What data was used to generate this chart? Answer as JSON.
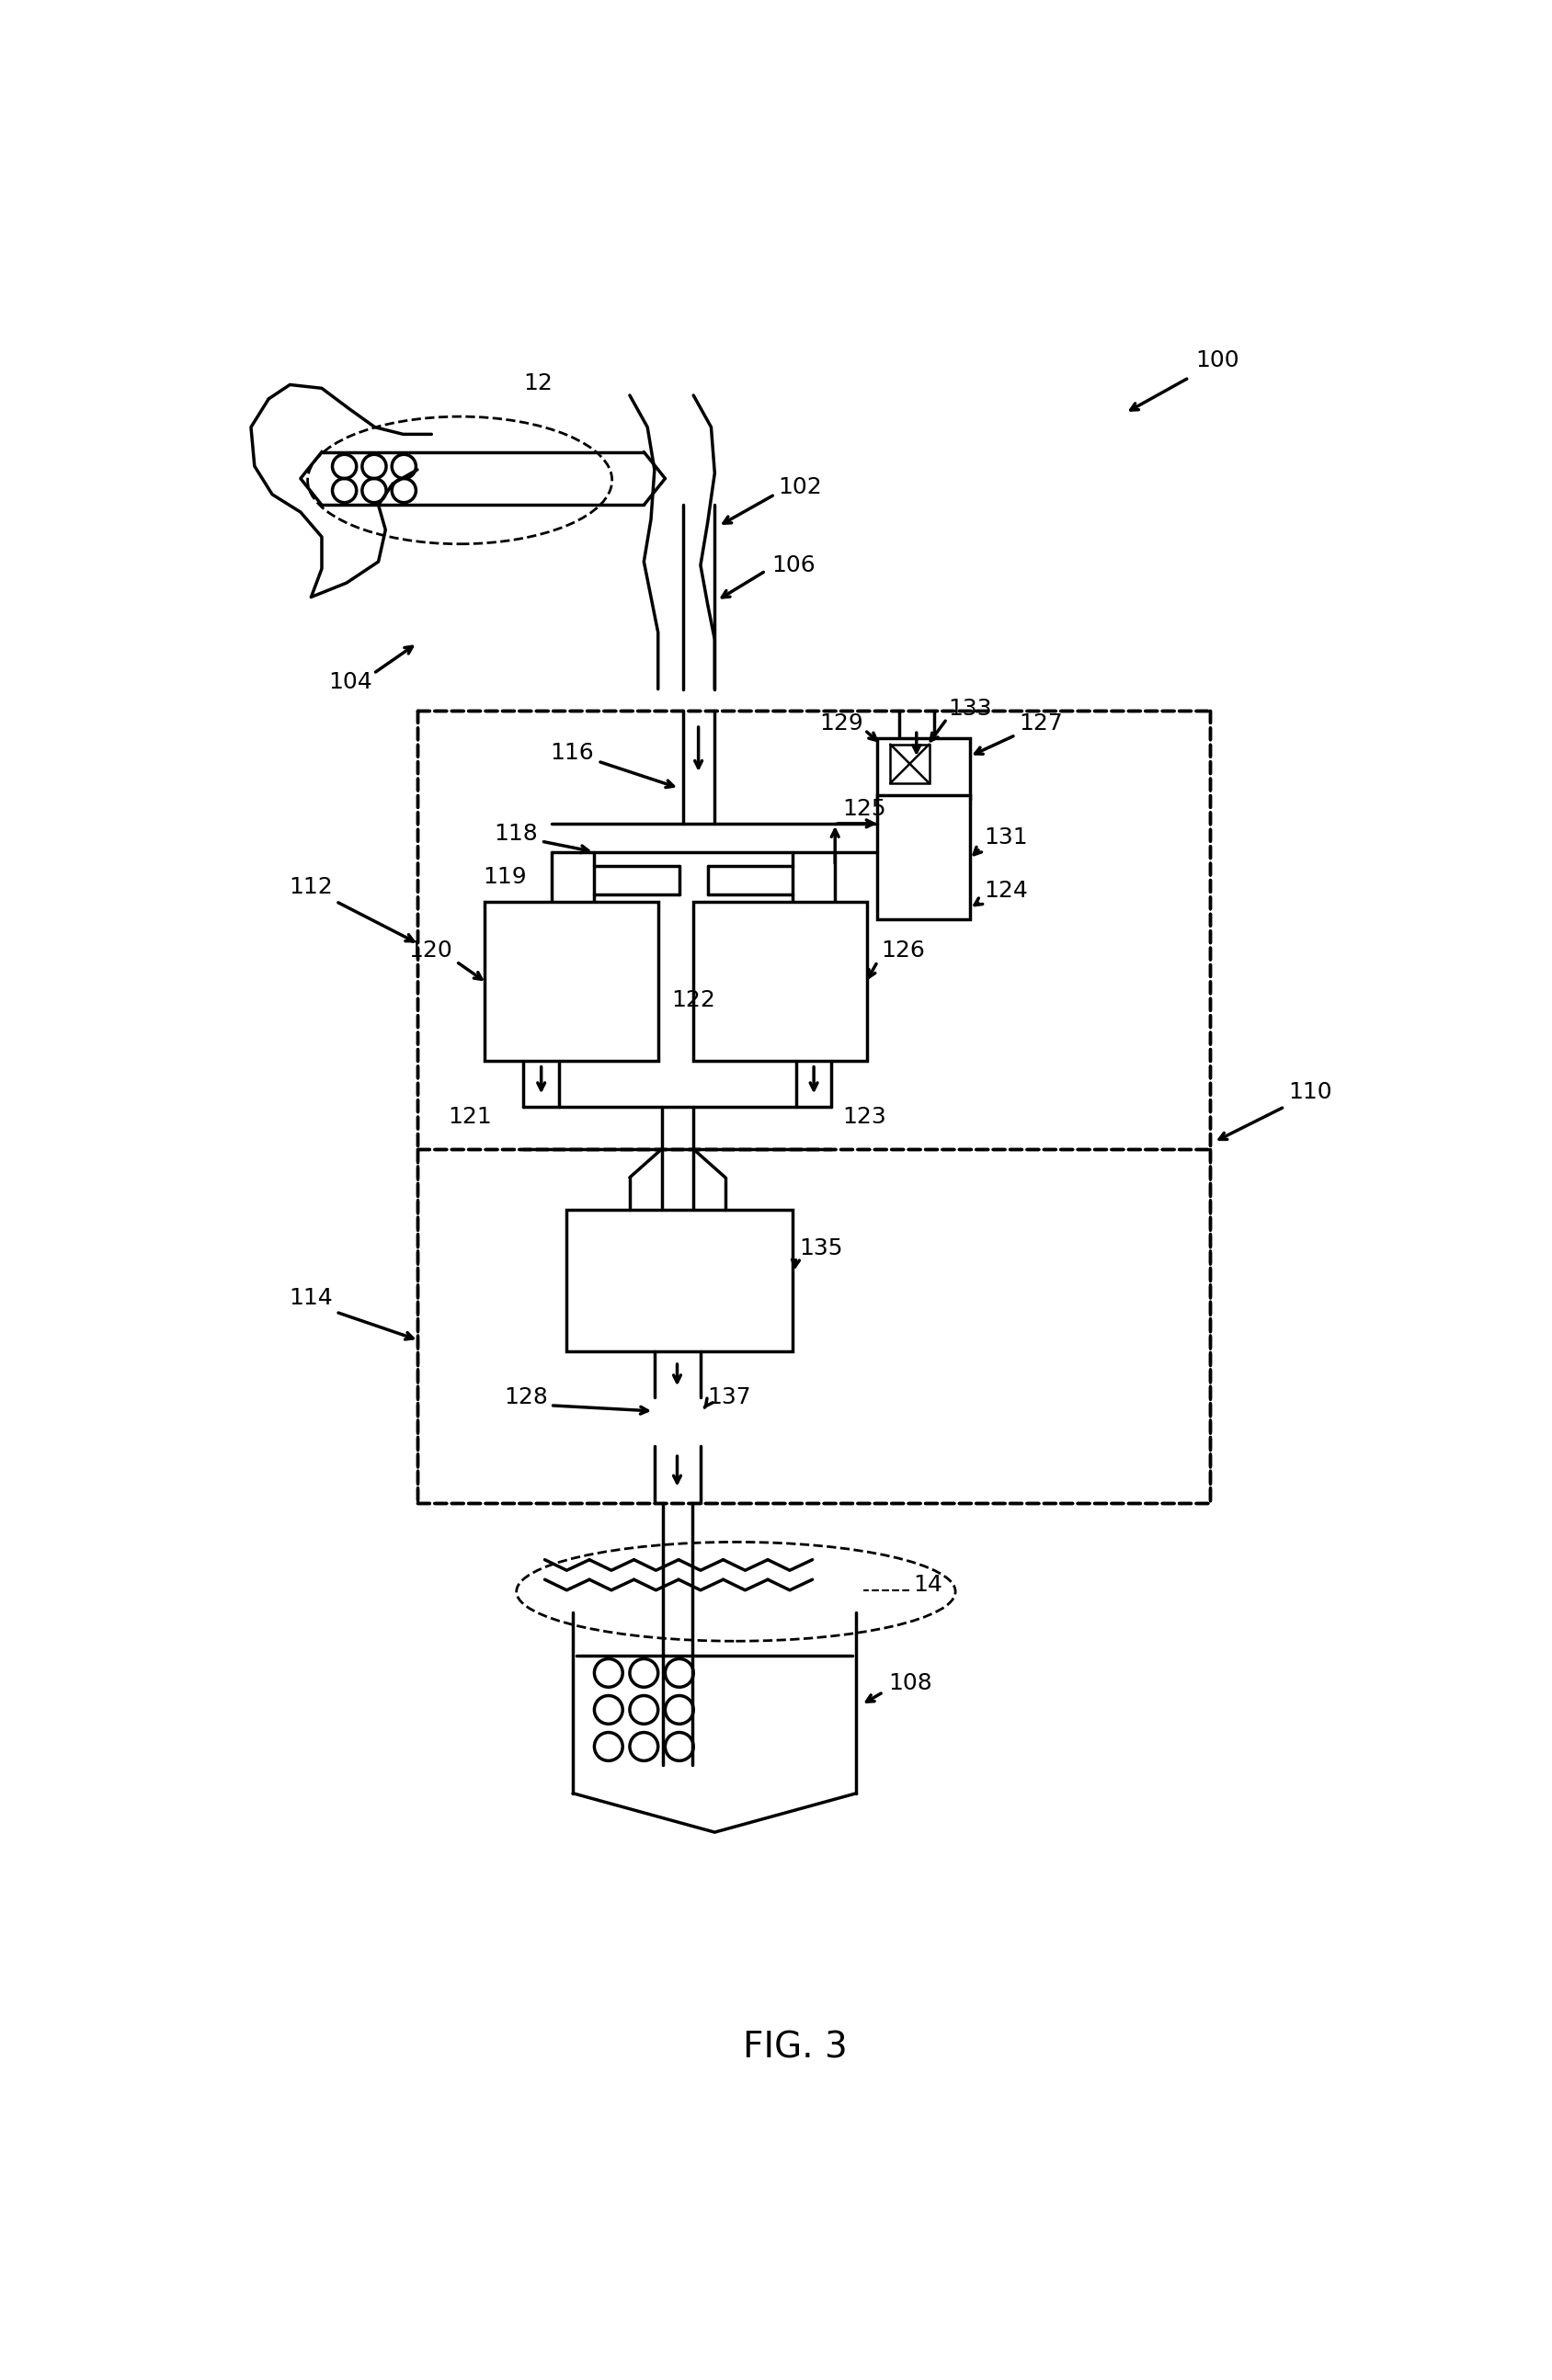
{
  "title": "FIG. 3",
  "fig_width": 16.88,
  "fig_height": 25.89,
  "background_color": "#ffffff",
  "line_color": "#000000",
  "text_color": "#000000",
  "font_size_label": 18,
  "font_size_title": 28
}
